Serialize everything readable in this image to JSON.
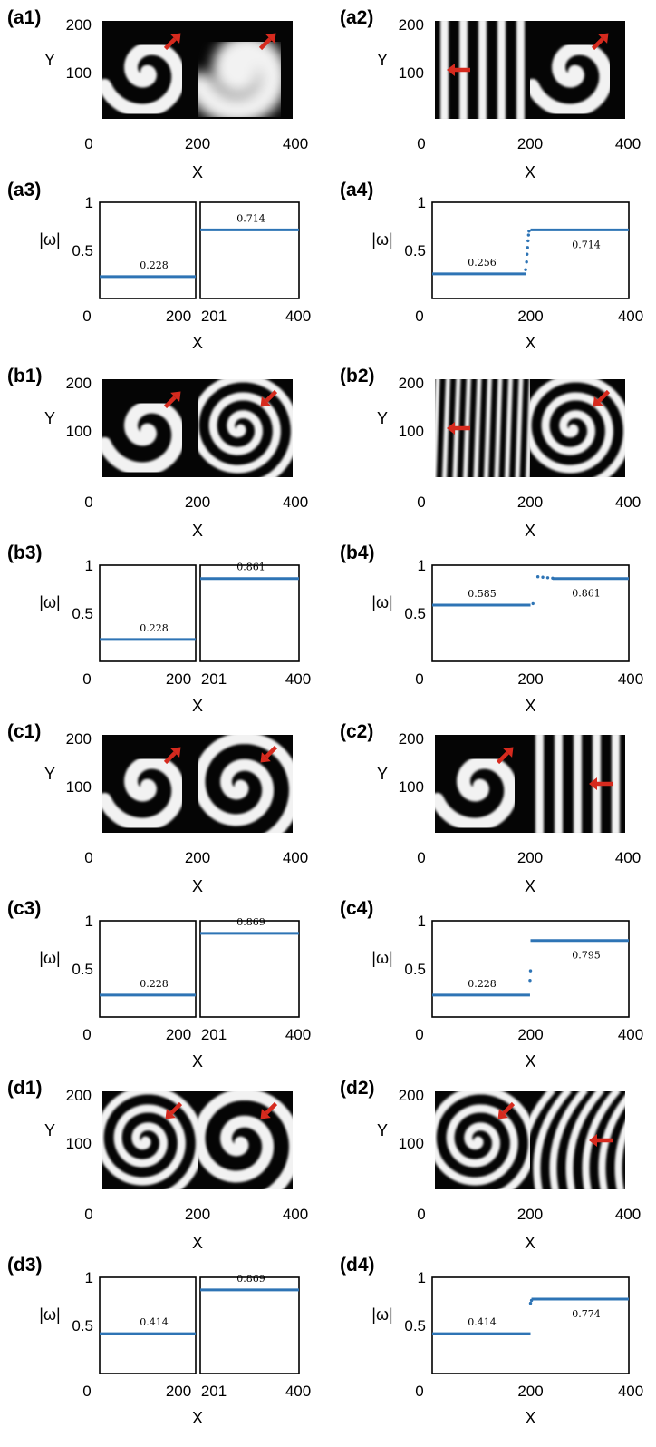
{
  "colors": {
    "series": "#2e74b5",
    "arrow": "#d62a1e",
    "frame": "#000000",
    "stripe": "#f2f2f2",
    "background": "#050505"
  },
  "chart_data": [
    {
      "id": "a1",
      "label": "(a1)",
      "type": "pattern-image",
      "xlabel": "X",
      "ylabel": "Y",
      "x_ticks": [
        "0",
        "200",
        "400"
      ],
      "y_ticks": [
        "200",
        "100"
      ],
      "left_pattern": "spiral-1",
      "right_pattern": "spiral-1-blurred",
      "arrows": [
        "northeast",
        "northeast"
      ]
    },
    {
      "id": "a2",
      "label": "(a2)",
      "type": "pattern-image",
      "xlabel": "X",
      "ylabel": "Y",
      "x_ticks": [
        "0",
        "200",
        "400"
      ],
      "y_ticks": [
        "200",
        "100"
      ],
      "left_pattern": "plane-wave",
      "right_pattern": "spiral-1",
      "arrows": [
        "west",
        "northeast"
      ]
    },
    {
      "id": "a3",
      "label": "(a3)",
      "type": "scatter",
      "xlabel": "X",
      "ylabel": "|ω|",
      "split": true,
      "x_ticks": [
        "0",
        "200",
        "201",
        "400"
      ],
      "y_ticks": [
        "1",
        "0.5"
      ],
      "ylim": [
        0,
        1
      ],
      "left_value": "0.228",
      "right_value": "0.714"
    },
    {
      "id": "a4",
      "label": "(a4)",
      "type": "scatter",
      "xlabel": "X",
      "ylabel": "|ω|",
      "split": false,
      "x_ticks": [
        "0",
        "200",
        "400"
      ],
      "y_ticks": [
        "1",
        "0.5"
      ],
      "ylim": [
        0,
        1
      ],
      "left_value": "0.256",
      "right_value": "0.714",
      "transition_points": [
        [
          190,
          0.3
        ],
        [
          192,
          0.38
        ],
        [
          193,
          0.46
        ],
        [
          194,
          0.53
        ],
        [
          195,
          0.6
        ],
        [
          196,
          0.66
        ],
        [
          197,
          0.7
        ]
      ]
    },
    {
      "id": "b1",
      "label": "(b1)",
      "type": "pattern-image",
      "xlabel": "X",
      "ylabel": "Y",
      "x_ticks": [
        "0",
        "200",
        "400"
      ],
      "y_ticks": [
        "200",
        "100"
      ],
      "left_pattern": "spiral-1",
      "right_pattern": "spiral-3",
      "arrows": [
        "northeast",
        "southwest"
      ]
    },
    {
      "id": "b2",
      "label": "(b2)",
      "type": "pattern-image",
      "xlabel": "X",
      "ylabel": "Y",
      "x_ticks": [
        "0",
        "200",
        "400"
      ],
      "y_ticks": [
        "200",
        "100"
      ],
      "left_pattern": "dense-waves",
      "right_pattern": "spiral-3",
      "arrows": [
        "west",
        "southwest"
      ]
    },
    {
      "id": "b3",
      "label": "(b3)",
      "type": "scatter",
      "xlabel": "X",
      "ylabel": "|ω|",
      "split": true,
      "x_ticks": [
        "0",
        "200",
        "201",
        "400"
      ],
      "y_ticks": [
        "1",
        "0.5"
      ],
      "ylim": [
        0,
        1
      ],
      "left_value": "0.228",
      "right_value": "0.861"
    },
    {
      "id": "b4",
      "label": "(b4)",
      "type": "scatter",
      "xlabel": "X",
      "ylabel": "|ω|",
      "split": false,
      "x_ticks": [
        "0",
        "200",
        "400"
      ],
      "y_ticks": [
        "1",
        "0.5"
      ],
      "ylim": [
        0,
        1
      ],
      "left_value": "0.585",
      "right_value": "0.861",
      "transition_points": [
        [
          205,
          0.6
        ],
        [
          215,
          0.88
        ],
        [
          225,
          0.875
        ],
        [
          235,
          0.87
        ],
        [
          245,
          0.865
        ]
      ]
    },
    {
      "id": "c1",
      "label": "(c1)",
      "type": "pattern-image",
      "xlabel": "X",
      "ylabel": "Y",
      "x_ticks": [
        "0",
        "200",
        "400"
      ],
      "y_ticks": [
        "200",
        "100"
      ],
      "left_pattern": "spiral-1",
      "right_pattern": "spiral-2",
      "arrows": [
        "northeast",
        "southwest"
      ]
    },
    {
      "id": "c2",
      "label": "(c2)",
      "type": "pattern-image",
      "xlabel": "X",
      "ylabel": "Y",
      "x_ticks": [
        "0",
        "200",
        "400"
      ],
      "y_ticks": [
        "200",
        "100"
      ],
      "left_pattern": "spiral-1",
      "right_pattern": "plane-wave",
      "arrows": [
        "northeast",
        "west"
      ]
    },
    {
      "id": "c3",
      "label": "(c3)",
      "type": "scatter",
      "xlabel": "X",
      "ylabel": "|ω|",
      "split": true,
      "x_ticks": [
        "0",
        "200",
        "201",
        "400"
      ],
      "y_ticks": [
        "1",
        "0.5"
      ],
      "ylim": [
        0,
        1
      ],
      "left_value": "0.228",
      "right_value": "0.869"
    },
    {
      "id": "c4",
      "label": "(c4)",
      "type": "scatter",
      "xlabel": "X",
      "ylabel": "|ω|",
      "split": false,
      "x_ticks": [
        "0",
        "200",
        "400"
      ],
      "y_ticks": [
        "1",
        "0.5"
      ],
      "ylim": [
        0,
        1
      ],
      "left_value": "0.228",
      "right_value": "0.795",
      "transition_points": [
        [
          199,
          0.38
        ],
        [
          200,
          0.48
        ]
      ]
    },
    {
      "id": "d1",
      "label": "(d1)",
      "type": "pattern-image",
      "xlabel": "X",
      "ylabel": "Y",
      "x_ticks": [
        "0",
        "200",
        "400"
      ],
      "y_ticks": [
        "200",
        "100"
      ],
      "left_pattern": "spiral-3",
      "right_pattern": "spiral-2",
      "arrows": [
        "southwest",
        "southwest"
      ]
    },
    {
      "id": "d2",
      "label": "(d2)",
      "type": "pattern-image",
      "xlabel": "X",
      "ylabel": "Y",
      "x_ticks": [
        "0",
        "200",
        "400"
      ],
      "y_ticks": [
        "200",
        "100"
      ],
      "left_pattern": "spiral-3",
      "right_pattern": "curved-waves",
      "arrows": [
        "southwest",
        "west"
      ]
    },
    {
      "id": "d3",
      "label": "(d3)",
      "type": "scatter",
      "xlabel": "X",
      "ylabel": "|ω|",
      "split": true,
      "x_ticks": [
        "0",
        "200",
        "201",
        "400"
      ],
      "y_ticks": [
        "1",
        "0.5"
      ],
      "ylim": [
        0,
        1
      ],
      "left_value": "0.414",
      "right_value": "0.869"
    },
    {
      "id": "d4",
      "label": "(d4)",
      "type": "scatter",
      "xlabel": "X",
      "ylabel": "|ω|",
      "split": false,
      "x_ticks": [
        "0",
        "200",
        "400"
      ],
      "y_ticks": [
        "1",
        "0.5"
      ],
      "ylim": [
        0,
        1
      ],
      "left_value": "0.414",
      "right_value": "0.774",
      "transition_points": [
        [
          200,
          0.73
        ],
        [
          202,
          0.76
        ]
      ]
    }
  ]
}
